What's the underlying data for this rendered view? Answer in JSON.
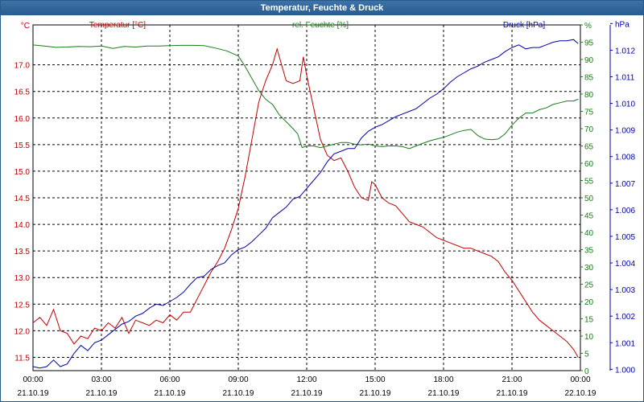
{
  "window": {
    "title": "Temperatur, Feuchte & Druck"
  },
  "chart_data": {
    "type": "line",
    "title": "Temperatur, Feuchte & Druck",
    "x_labels": [
      [
        "00:00",
        "21.10.19"
      ],
      [
        "03:00",
        "21.10.19"
      ],
      [
        "06:00",
        "21.10.19"
      ],
      [
        "09:00",
        "21.10.19"
      ],
      [
        "12:00",
        "21.10.19"
      ],
      [
        "15:00",
        "21.10.19"
      ],
      [
        "18:00",
        "21.10.19"
      ],
      [
        "21:00",
        "21.10.19"
      ],
      [
        "00:00",
        "22.10.19"
      ]
    ],
    "x_range": [
      0,
      24
    ],
    "axes": {
      "left": {
        "unit": "°C",
        "min": 11.25,
        "max": 17.75,
        "ticks": [
          "11.5",
          "12.0",
          "12.5",
          "13.0",
          "13.5",
          "14.0",
          "14.5",
          "15.0",
          "15.5",
          "16.0",
          "16.5",
          "17.0"
        ],
        "tick_values": [
          11.5,
          12.0,
          12.5,
          13.0,
          13.5,
          14.0,
          14.5,
          15.0,
          15.5,
          16.0,
          16.5,
          17.0
        ]
      },
      "right1": {
        "unit": "%",
        "min": 0,
        "max": 100,
        "ticks": [
          "0",
          "5",
          "10",
          "15",
          "20",
          "25",
          "30",
          "35",
          "40",
          "45",
          "50",
          "55",
          "60",
          "65",
          "70",
          "75",
          "80",
          "85",
          "90",
          "95",
          "%"
        ],
        "tick_values": [
          0,
          5,
          10,
          15,
          20,
          25,
          30,
          35,
          40,
          45,
          50,
          55,
          60,
          65,
          70,
          75,
          80,
          85,
          90,
          95,
          100
        ]
      },
      "right2": {
        "unit": "hPa",
        "min": 999.95,
        "max": 1012.95,
        "ticks": [
          "1.000",
          "1.001",
          "1.002",
          "1.003",
          "1.004",
          "1.005",
          "1.006",
          "1.007",
          "1.008",
          "1.009",
          "1.010",
          "1.011",
          "1.012",
          "hPa"
        ],
        "tick_values": [
          1000,
          1001,
          1002,
          1003,
          1004,
          1005,
          1006,
          1007,
          1008,
          1009,
          1010,
          1011,
          1012,
          1013
        ]
      }
    },
    "series": [
      {
        "name": "Temperatur [°C]",
        "axis": "left",
        "color": "#c00000",
        "points": [
          [
            0,
            12.15
          ],
          [
            0.3,
            12.25
          ],
          [
            0.6,
            12.1
          ],
          [
            0.9,
            12.4
          ],
          [
            1.2,
            12.0
          ],
          [
            1.5,
            11.95
          ],
          [
            1.8,
            11.75
          ],
          [
            2.1,
            11.9
          ],
          [
            2.4,
            11.85
          ],
          [
            2.7,
            12.05
          ],
          [
            3.0,
            12.0
          ],
          [
            3.3,
            12.15
          ],
          [
            3.6,
            12.05
          ],
          [
            3.9,
            12.25
          ],
          [
            4.2,
            11.95
          ],
          [
            4.5,
            12.2
          ],
          [
            4.8,
            12.15
          ],
          [
            5.1,
            12.1
          ],
          [
            5.4,
            12.2
          ],
          [
            5.7,
            12.15
          ],
          [
            6.0,
            12.3
          ],
          [
            6.3,
            12.2
          ],
          [
            6.6,
            12.35
          ],
          [
            6.9,
            12.35
          ],
          [
            7.2,
            12.6
          ],
          [
            7.5,
            12.85
          ],
          [
            7.8,
            13.1
          ],
          [
            8.1,
            13.3
          ],
          [
            8.4,
            13.55
          ],
          [
            8.7,
            13.9
          ],
          [
            9.0,
            14.3
          ],
          [
            9.3,
            14.9
          ],
          [
            9.6,
            15.6
          ],
          [
            9.9,
            16.3
          ],
          [
            10.2,
            16.7
          ],
          [
            10.5,
            17.0
          ],
          [
            10.7,
            17.3
          ],
          [
            10.9,
            17.0
          ],
          [
            11.1,
            16.7
          ],
          [
            11.4,
            16.65
          ],
          [
            11.7,
            16.7
          ],
          [
            11.85,
            17.15
          ],
          [
            12.0,
            16.8
          ],
          [
            12.3,
            16.2
          ],
          [
            12.6,
            15.6
          ],
          [
            12.9,
            15.3
          ],
          [
            13.2,
            15.2
          ],
          [
            13.5,
            15.25
          ],
          [
            13.8,
            15.0
          ],
          [
            14.1,
            14.7
          ],
          [
            14.4,
            14.5
          ],
          [
            14.7,
            14.45
          ],
          [
            14.85,
            14.8
          ],
          [
            15.0,
            14.75
          ],
          [
            15.3,
            14.5
          ],
          [
            15.6,
            14.4
          ],
          [
            15.9,
            14.35
          ],
          [
            16.2,
            14.2
          ],
          [
            16.5,
            14.05
          ],
          [
            16.8,
            14.0
          ],
          [
            17.1,
            13.95
          ],
          [
            17.4,
            13.85
          ],
          [
            17.7,
            13.75
          ],
          [
            18.0,
            13.7
          ],
          [
            18.3,
            13.65
          ],
          [
            18.6,
            13.6
          ],
          [
            18.9,
            13.55
          ],
          [
            19.2,
            13.55
          ],
          [
            19.5,
            13.5
          ],
          [
            19.8,
            13.45
          ],
          [
            20.1,
            13.4
          ],
          [
            20.4,
            13.3
          ],
          [
            20.7,
            13.1
          ],
          [
            21.0,
            12.95
          ],
          [
            21.3,
            12.75
          ],
          [
            21.6,
            12.55
          ],
          [
            21.9,
            12.35
          ],
          [
            22.2,
            12.2
          ],
          [
            22.5,
            12.1
          ],
          [
            22.8,
            12.0
          ],
          [
            23.1,
            11.9
          ],
          [
            23.4,
            11.8
          ],
          [
            23.7,
            11.65
          ],
          [
            23.9,
            11.5
          ]
        ]
      },
      {
        "name": "rel. Feuchte [%]",
        "axis": "right1",
        "color": "#1a7a1a",
        "points": [
          [
            0,
            94.2
          ],
          [
            0.5,
            93.9
          ],
          [
            1,
            93.5
          ],
          [
            1.5,
            93.6
          ],
          [
            2,
            93.8
          ],
          [
            2.5,
            93.7
          ],
          [
            3,
            93.9
          ],
          [
            3.5,
            93.2
          ],
          [
            4,
            93.8
          ],
          [
            4.5,
            93.6
          ],
          [
            5,
            93.9
          ],
          [
            5.5,
            93.9
          ],
          [
            6,
            94.0
          ],
          [
            6.5,
            94.1
          ],
          [
            7,
            94.1
          ],
          [
            7.5,
            94.0
          ],
          [
            8,
            93.3
          ],
          [
            8.5,
            92.5
          ],
          [
            9,
            91.0
          ],
          [
            9.3,
            88.0
          ],
          [
            9.6,
            84.5
          ],
          [
            9.9,
            81.0
          ],
          [
            10.2,
            78.5
          ],
          [
            10.5,
            77.0
          ],
          [
            10.8,
            74.0
          ],
          [
            11.1,
            72.0
          ],
          [
            11.4,
            70.0
          ],
          [
            11.6,
            68.5
          ],
          [
            11.8,
            64.5
          ],
          [
            12.0,
            65.0
          ],
          [
            12.3,
            65.0
          ],
          [
            12.6,
            64.5
          ],
          [
            12.9,
            65.0
          ],
          [
            13.2,
            65.5
          ],
          [
            13.5,
            66.0
          ],
          [
            13.8,
            66.0
          ],
          [
            14.1,
            65.5
          ],
          [
            14.4,
            65.3
          ],
          [
            14.7,
            65.5
          ],
          [
            15.0,
            65.0
          ],
          [
            15.3,
            64.8
          ],
          [
            15.6,
            65.0
          ],
          [
            15.9,
            65.0
          ],
          [
            16.2,
            64.8
          ],
          [
            16.5,
            64.2
          ],
          [
            16.8,
            65.0
          ],
          [
            17.1,
            65.8
          ],
          [
            17.4,
            66.5
          ],
          [
            17.7,
            67.0
          ],
          [
            18.0,
            67.5
          ],
          [
            18.3,
            68.2
          ],
          [
            18.6,
            69.0
          ],
          [
            18.9,
            69.5
          ],
          [
            19.2,
            69.8
          ],
          [
            19.5,
            68.0
          ],
          [
            19.8,
            67.0
          ],
          [
            20.1,
            66.8
          ],
          [
            20.4,
            67.0
          ],
          [
            20.7,
            68.5
          ],
          [
            21.0,
            71.0
          ],
          [
            21.3,
            73.0
          ],
          [
            21.6,
            74.5
          ],
          [
            21.9,
            74.5
          ],
          [
            22.2,
            75.5
          ],
          [
            22.5,
            76.0
          ],
          [
            22.8,
            77.0
          ],
          [
            23.1,
            77.5
          ],
          [
            23.4,
            78.0
          ],
          [
            23.7,
            78.0
          ],
          [
            23.9,
            78.5
          ]
        ]
      },
      {
        "name": "Druck [hPa]",
        "axis": "right2",
        "color": "#0000aa",
        "points": [
          [
            0,
            1000.1
          ],
          [
            0.3,
            1000.05
          ],
          [
            0.6,
            1000.1
          ],
          [
            0.9,
            1000.35
          ],
          [
            1.2,
            1000.1
          ],
          [
            1.5,
            1000.2
          ],
          [
            1.8,
            1000.6
          ],
          [
            2.1,
            1000.9
          ],
          [
            2.4,
            1000.7
          ],
          [
            2.7,
            1001.0
          ],
          [
            3.0,
            1001.1
          ],
          [
            3.3,
            1001.3
          ],
          [
            3.6,
            1001.5
          ],
          [
            3.9,
            1001.7
          ],
          [
            4.2,
            1001.8
          ],
          [
            4.5,
            1002.0
          ],
          [
            4.8,
            1002.1
          ],
          [
            5.1,
            1002.3
          ],
          [
            5.4,
            1002.45
          ],
          [
            5.7,
            1002.4
          ],
          [
            6.0,
            1002.55
          ],
          [
            6.3,
            1002.7
          ],
          [
            6.6,
            1002.9
          ],
          [
            6.9,
            1003.2
          ],
          [
            7.2,
            1003.45
          ],
          [
            7.5,
            1003.5
          ],
          [
            7.8,
            1003.75
          ],
          [
            8.1,
            1003.9
          ],
          [
            8.4,
            1004.0
          ],
          [
            8.7,
            1004.3
          ],
          [
            9.0,
            1004.5
          ],
          [
            9.3,
            1004.6
          ],
          [
            9.6,
            1004.8
          ],
          [
            9.9,
            1005.05
          ],
          [
            10.2,
            1005.3
          ],
          [
            10.5,
            1005.7
          ],
          [
            10.8,
            1005.9
          ],
          [
            11.1,
            1006.1
          ],
          [
            11.4,
            1006.4
          ],
          [
            11.7,
            1006.5
          ],
          [
            12.0,
            1006.8
          ],
          [
            12.3,
            1007.1
          ],
          [
            12.6,
            1007.4
          ],
          [
            12.9,
            1007.8
          ],
          [
            13.2,
            1008.1
          ],
          [
            13.5,
            1008.2
          ],
          [
            13.8,
            1008.3
          ],
          [
            14.1,
            1008.3
          ],
          [
            14.4,
            1008.7
          ],
          [
            14.7,
            1008.95
          ],
          [
            15.0,
            1009.1
          ],
          [
            15.3,
            1009.2
          ],
          [
            15.6,
            1009.35
          ],
          [
            15.9,
            1009.5
          ],
          [
            16.2,
            1009.6
          ],
          [
            16.5,
            1009.7
          ],
          [
            16.8,
            1009.8
          ],
          [
            17.1,
            1010.0
          ],
          [
            17.4,
            1010.2
          ],
          [
            17.7,
            1010.35
          ],
          [
            18.0,
            1010.55
          ],
          [
            18.3,
            1010.8
          ],
          [
            18.6,
            1011.0
          ],
          [
            18.9,
            1011.15
          ],
          [
            19.2,
            1011.3
          ],
          [
            19.5,
            1011.4
          ],
          [
            19.8,
            1011.55
          ],
          [
            20.1,
            1011.65
          ],
          [
            20.4,
            1011.75
          ],
          [
            20.7,
            1011.95
          ],
          [
            21.0,
            1012.1
          ],
          [
            21.3,
            1012.2
          ],
          [
            21.6,
            1012.05
          ],
          [
            21.9,
            1012.1
          ],
          [
            22.2,
            1012.1
          ],
          [
            22.5,
            1012.2
          ],
          [
            22.8,
            1012.3
          ],
          [
            23.1,
            1012.35
          ],
          [
            23.4,
            1012.35
          ],
          [
            23.7,
            1012.4
          ],
          [
            23.9,
            1012.25
          ]
        ]
      }
    ]
  }
}
